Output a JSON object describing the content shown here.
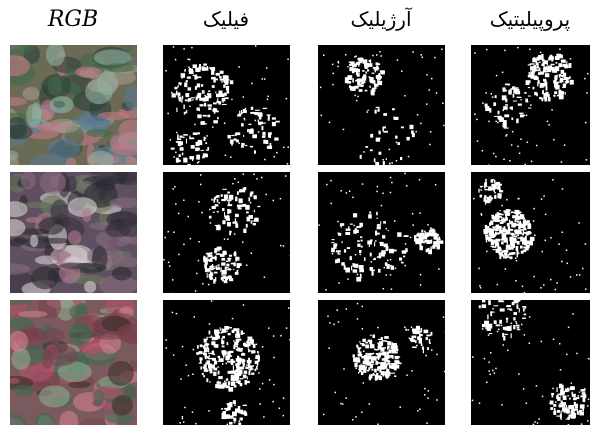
{
  "headers": [
    "RGB",
    "فیلیک",
    "آرژیلیک",
    "پروپیلیتیک"
  ]
}
